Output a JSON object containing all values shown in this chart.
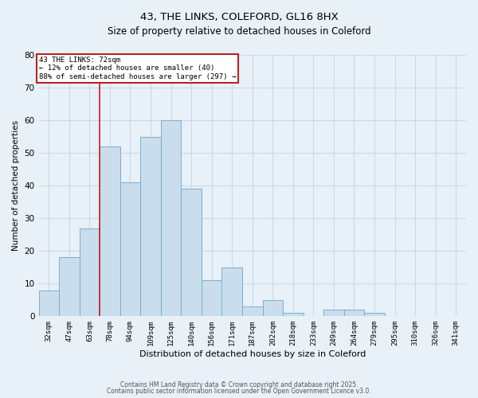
{
  "title": "43, THE LINKS, COLEFORD, GL16 8HX",
  "subtitle": "Size of property relative to detached houses in Coleford",
  "xlabel": "Distribution of detached houses by size in Coleford",
  "ylabel": "Number of detached properties",
  "bar_labels": [
    "32sqm",
    "47sqm",
    "63sqm",
    "78sqm",
    "94sqm",
    "109sqm",
    "125sqm",
    "140sqm",
    "156sqm",
    "171sqm",
    "187sqm",
    "202sqm",
    "218sqm",
    "233sqm",
    "249sqm",
    "264sqm",
    "279sqm",
    "295sqm",
    "310sqm",
    "326sqm",
    "341sqm"
  ],
  "bar_values": [
    8,
    18,
    27,
    52,
    41,
    55,
    60,
    39,
    11,
    15,
    3,
    5,
    1,
    0,
    2,
    2,
    1,
    0,
    0,
    0,
    0
  ],
  "bar_color": "#c9dded",
  "bar_edge_color": "#7aaed0",
  "annotation_text": "43 THE LINKS: 72sqm\n← 12% of detached houses are smaller (40)\n88% of semi-detached houses are larger (297) →",
  "annotation_box_facecolor": "#ffffff",
  "annotation_border_color": "#bb2222",
  "vline_color": "#bb2222",
  "ylim": [
    0,
    80
  ],
  "yticks": [
    0,
    10,
    20,
    30,
    40,
    50,
    60,
    70,
    80
  ],
  "grid_color": "#ccd9e8",
  "background_color": "#e8f0f8",
  "footer1": "Contains HM Land Registry data © Crown copyright and database right 2025.",
  "footer2": "Contains public sector information licensed under the Open Government Licence v3.0."
}
